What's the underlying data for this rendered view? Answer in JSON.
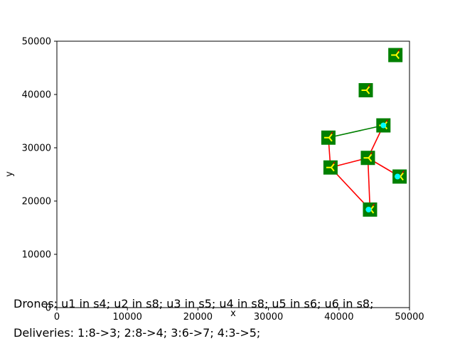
{
  "chart_data": {
    "type": "scatter",
    "title": "",
    "xlabel": "x",
    "ylabel": "y",
    "xlim": [
      0,
      50000
    ],
    "ylim": [
      0,
      50000
    ],
    "xticks": [
      0,
      10000,
      20000,
      30000,
      40000,
      50000
    ],
    "yticks": [
      0,
      10000,
      20000,
      30000,
      40000,
      50000
    ],
    "grid": false,
    "stations": [
      {
        "x": 38800,
        "y": 26300
      },
      {
        "x": 48600,
        "y": 24600
      },
      {
        "x": 44400,
        "y": 18400
      },
      {
        "x": 48000,
        "y": 47400
      },
      {
        "x": 43800,
        "y": 40800
      },
      {
        "x": 46300,
        "y": 34200
      },
      {
        "x": 38500,
        "y": 31900
      },
      {
        "x": 44100,
        "y": 28100
      }
    ],
    "links": [
      {
        "from": [
          38800,
          26300
        ],
        "to": [
          44100,
          28100
        ],
        "color": "#ff0000"
      },
      {
        "from": [
          38800,
          26300
        ],
        "to": [
          44400,
          18400
        ],
        "color": "#ff0000"
      },
      {
        "from": [
          38800,
          26300
        ],
        "to": [
          38500,
          31900
        ],
        "color": "#ff0000"
      },
      {
        "from": [
          44100,
          28100
        ],
        "to": [
          44400,
          18400
        ],
        "color": "#ff0000"
      },
      {
        "from": [
          44100,
          28100
        ],
        "to": [
          48600,
          24600
        ],
        "color": "#ff0000"
      },
      {
        "from": [
          44100,
          28100
        ],
        "to": [
          46300,
          34200
        ],
        "color": "#ff0000"
      },
      {
        "from": [
          38500,
          31900
        ],
        "to": [
          46300,
          34200
        ],
        "color": "#008000"
      }
    ],
    "drone_dots": [
      {
        "x": 46300,
        "y": 34200
      },
      {
        "x": 48300,
        "y": 24600
      },
      {
        "x": 44200,
        "y": 18400
      }
    ],
    "colors": {
      "station": "#008000",
      "red_link": "#ff0000",
      "green_link": "#008000",
      "drone": "#00ffff",
      "marker": "#ffff00"
    }
  },
  "captions": {
    "drones": "Drones: u1 in s4; u2 in s8; u3 in s5; u4 in s8; u5 in s6; u6 in s8;",
    "deliveries": "Deliveries: 1:8->3; 2:8->4; 3:6->7; 4:3->5;"
  }
}
